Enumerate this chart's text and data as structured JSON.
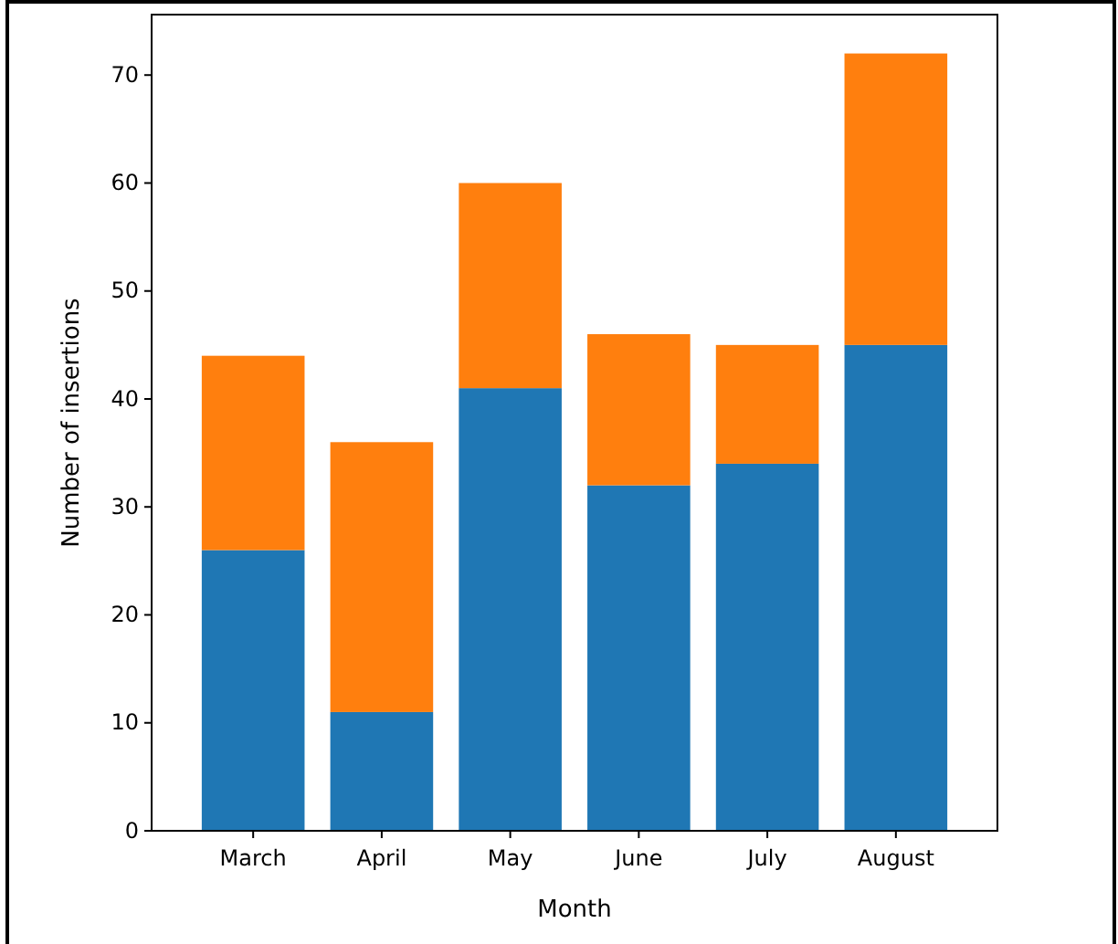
{
  "chart_data": {
    "type": "bar",
    "stacked": true,
    "xlabel": "Month",
    "ylabel": "Number of insertions",
    "categories": [
      "March",
      "April",
      "May",
      "June",
      "July",
      "August"
    ],
    "series": [
      {
        "color": "#1f77b4",
        "values": [
          26,
          11,
          41,
          32,
          34,
          45
        ]
      },
      {
        "color": "#ff7f0e",
        "values": [
          18,
          25,
          19,
          14,
          11,
          27
        ]
      }
    ],
    "ylim": [
      0,
      75.6
    ],
    "yticks": [
      0,
      10,
      20,
      30,
      40,
      50,
      60,
      70
    ],
    "grid": false
  }
}
